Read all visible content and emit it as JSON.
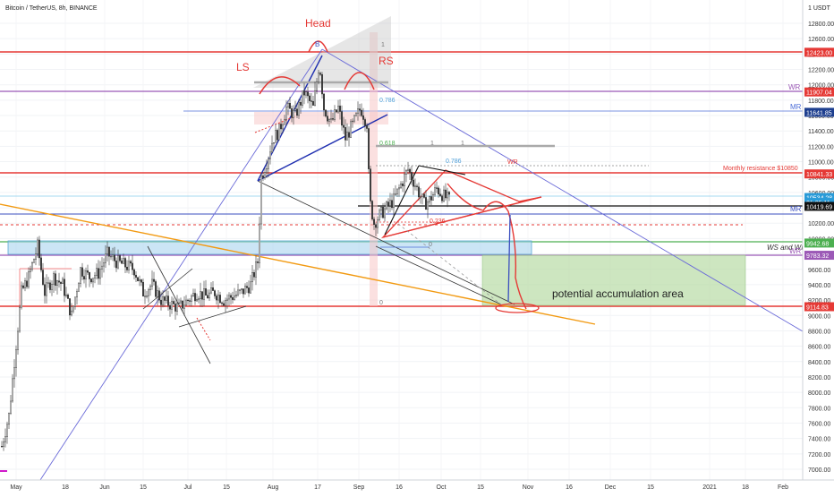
{
  "header": {
    "symbol": "Bitcoin / TetherUS, 8h, BINANCE",
    "currency": "1 USDT"
  },
  "chart_data": {
    "type": "candlestick",
    "y_axis_ticks": [
      "12800.00",
      "12600.00",
      "12400.00",
      "12200.00",
      "12000.00",
      "11800.00",
      "11600.00",
      "11400.00",
      "11200.00",
      "11000.00",
      "10800.00",
      "10600.00",
      "10400.00",
      "10200.00",
      "10000.00",
      "9800.00",
      "9600.00",
      "9400.00",
      "9200.00",
      "9000.00",
      "8800.00",
      "8600.00",
      "8400.00",
      "8200.00",
      "8000.00",
      "7800.00",
      "7600.00",
      "7400.00",
      "7200.00",
      "7000.00"
    ],
    "x_axis_ticks": [
      "May",
      "18",
      "Jun",
      "15",
      "Jul",
      "15",
      "Aug",
      "17",
      "Sep",
      "16",
      "Oct",
      "15",
      "Nov",
      "16",
      "Dec",
      "15",
      "2021",
      "18",
      "Feb"
    ],
    "ylim": [
      6900,
      13100
    ],
    "price_labels": [
      {
        "text": "12423.00",
        "color": "#e53935",
        "price": 12423
      },
      {
        "text": "11907.04",
        "color": "#e53935",
        "price": 11907
      },
      {
        "text": "11641.85",
        "color": "#1e3f8f",
        "price": 11642
      },
      {
        "text": "10841.33",
        "color": "#e53935",
        "price": 10841
      },
      {
        "text": "10534.28",
        "color": "#2a9bd8",
        "price": 10534
      },
      {
        "text": "01:05:11",
        "color": "#2a9bd8",
        "price": 10470
      },
      {
        "text": "10419.69",
        "color": "#111111",
        "price": 10419
      },
      {
        "text": "9942.68",
        "color": "#4caf50",
        "price": 9942
      },
      {
        "text": "9783.32",
        "color": "#9b59b6",
        "price": 9783
      },
      {
        "text": "9114.83",
        "color": "#e53935",
        "price": 9114
      }
    ],
    "annotations": {
      "head": "Head",
      "ls": "LS",
      "rs": "RS",
      "wr": "WR",
      "mr": "MR",
      "ws_and_wr": "WS and WR",
      "monthly_resistance": "Monthly resistance $10850",
      "accumulation": "potential accumulation area",
      "fib_0786": "0.786",
      "fib_0618": "0.618",
      "fib_0236": "0.236",
      "fib_1": "1",
      "fib_0": "0",
      "wave_b": "B"
    }
  }
}
